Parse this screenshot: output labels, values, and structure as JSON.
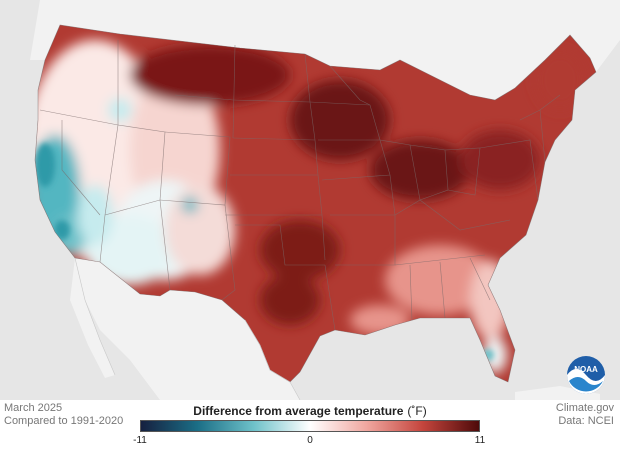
{
  "footer": {
    "date": "March 2025",
    "baseline": "Compared to 1991-2020",
    "source": "Climate.gov",
    "data_source": "Data: NCEI"
  },
  "legend": {
    "title": "Difference from average temperature",
    "unit": "(˚F)",
    "min_label": "-11",
    "mid_label": "0",
    "max_label": "11",
    "min": -11,
    "max": 11,
    "colors": [
      "#16203f",
      "#1b6e86",
      "#6ec1c9",
      "#ffffff",
      "#f0a7a0",
      "#c4453d",
      "#4e0a0a"
    ]
  },
  "logo": {
    "text": "NOAA"
  },
  "colors": {
    "dark_red": "#7a1616",
    "mid_red": "#b13a32",
    "light_red": "#e7948b",
    "pale": "#fbe9e6",
    "teal": "#53b6c1",
    "light_teal": "#c6ebee",
    "land_outside": "#f2f2f2",
    "ocean": "#e6e6e6",
    "borders": "#7a6a6a"
  }
}
